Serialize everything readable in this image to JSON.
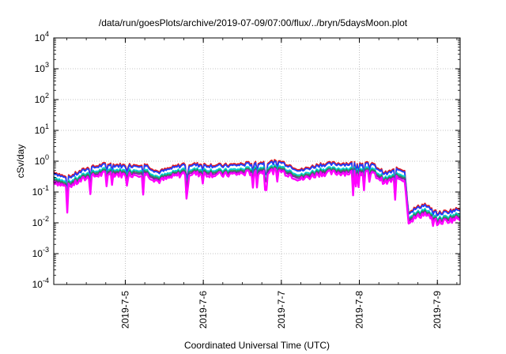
{
  "chart_data": {
    "type": "line",
    "title": "/data/run/goesPlots/archive/2019-07-09/07:00/flux/../bryn/5daysMoon.plot",
    "xlabel": "Coordinated Universal Time (UTC)",
    "ylabel": "cSv/day",
    "yscale": "log",
    "ylim_exponent": [
      -4,
      4
    ],
    "xlim": [
      "2019-07-04 02:00",
      "2019-07-09 07:00"
    ],
    "grid": true,
    "y_tick_labels": [
      {
        "base": "10",
        "exp": "4"
      },
      {
        "base": "10",
        "exp": "3"
      },
      {
        "base": "10",
        "exp": "2"
      },
      {
        "base": "10",
        "exp": "1"
      },
      {
        "base": "10",
        "exp": "0"
      },
      {
        "base": "10",
        "exp": "-1"
      },
      {
        "base": "10",
        "exp": "-2"
      },
      {
        "base": "10",
        "exp": "-3"
      },
      {
        "base": "10",
        "exp": "-4"
      }
    ],
    "x_ticks": [
      {
        "label": "2019-7-5",
        "t": "2019-07-05 00:00"
      },
      {
        "label": "2019-7-6",
        "t": "2019-07-06 00:00"
      },
      {
        "label": "2019-7-7",
        "t": "2019-07-07 00:00"
      },
      {
        "label": "2019-7-8",
        "t": "2019-07-08 00:00"
      },
      {
        "label": "2019-7-9",
        "t": "2019-07-09 00:00"
      }
    ],
    "series_colors": [
      "#e41a1c",
      "#1e3cff",
      "#00cfcf",
      "#2e8b57",
      "#7b1fa2",
      "#ff00ff"
    ],
    "base_profile": {
      "t": [
        "2019-07-04 02:00",
        "2019-07-04 06:00",
        "2019-07-04 12:00",
        "2019-07-04 18:00",
        "2019-07-05 00:00",
        "2019-07-05 06:00",
        "2019-07-05 10:00",
        "2019-07-05 12:00",
        "2019-07-05 18:00",
        "2019-07-06 00:00",
        "2019-07-06 06:00",
        "2019-07-06 12:00",
        "2019-07-06 18:00",
        "2019-07-07 00:00",
        "2019-07-07 06:00",
        "2019-07-07 12:00",
        "2019-07-07 18:00",
        "2019-07-08 00:00",
        "2019-07-08 04:00",
        "2019-07-08 08:00",
        "2019-07-08 12:00",
        "2019-07-08 14:00",
        "2019-07-08 15:00",
        "2019-07-08 20:00",
        "2019-07-09 00:00",
        "2019-07-09 07:00"
      ],
      "log10_value": [
        -0.55,
        -0.75,
        -0.45,
        -0.3,
        -0.35,
        -0.3,
        -0.55,
        -0.5,
        -0.3,
        -0.32,
        -0.35,
        -0.3,
        -0.25,
        -0.22,
        -0.5,
        -0.3,
        -0.28,
        -0.28,
        -0.3,
        -0.6,
        -0.45,
        -0.5,
        -1.85,
        -1.6,
        -1.9,
        -1.75
      ]
    },
    "series_offsets_log10": [
      0.22,
      0.18,
      0.05,
      0.0,
      -0.05,
      -0.1
    ]
  }
}
